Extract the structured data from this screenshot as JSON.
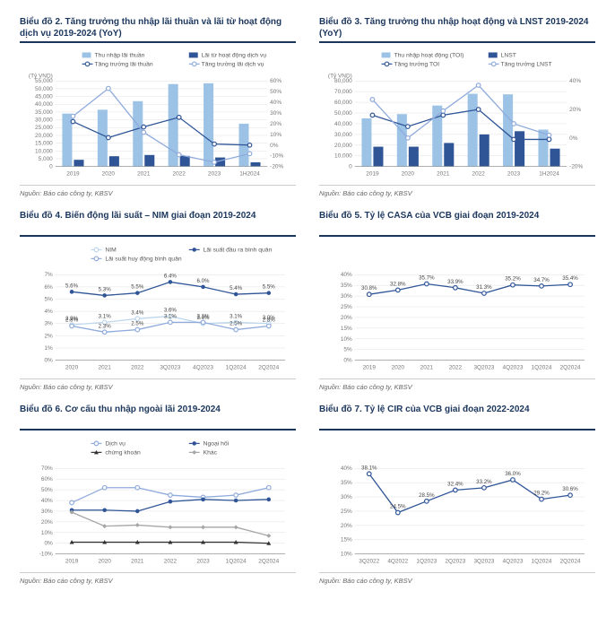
{
  "source_text": "Nguồn: Báo cáo công ty, KBSV",
  "colors": {
    "navy": "#1b365d",
    "lightblue_bar": "#9cc3e6",
    "darkblue_bar": "#2f5597",
    "line_primary": "#2f5597",
    "line_secondary": "#8faadc",
    "grid": "#e0e0e0",
    "axis_text": "#777777",
    "label_dark": "#333333"
  },
  "chart2": {
    "title": "Biểu đồ 2. Tăng trưởng thu nhập lãi thuần và lãi từ hoạt động dịch vụ 2019-2024 (YoY)",
    "categories": [
      "2019",
      "2020",
      "2021",
      "2022",
      "2023",
      "1H2024"
    ],
    "ylabel": "(Tỷ VND)",
    "yleft_max": 55000,
    "yleft_min": 0,
    "yleft_step": 5000,
    "yright_max": 60,
    "yright_min": -20,
    "yright_step": 10,
    "yright_suffix": "%",
    "series": {
      "bar1": {
        "label": "Thu nhập lãi thuần",
        "color": "#9cc3e6",
        "values": [
          34000,
          36500,
          42000,
          53000,
          53500,
          27500
        ]
      },
      "bar2": {
        "label": "Lãi từ hoạt động dịch vụ",
        "color": "#2f5597",
        "values": [
          4300,
          6600,
          7400,
          6800,
          5800,
          2700
        ]
      },
      "line1": {
        "label": "Tăng trưởng lãi thuần",
        "color": "#2f5597",
        "marker": "circle-open",
        "values": [
          22,
          7,
          17,
          26,
          1,
          0
        ]
      },
      "line2": {
        "label": "Tăng trưởng lãi dịch vụ",
        "color": "#8faadc",
        "marker": "circle-open",
        "values": [
          27,
          53,
          12,
          -9,
          -16,
          -8
        ]
      }
    }
  },
  "chart3": {
    "title": "Biểu đồ 3. Tăng trưởng thu nhập hoạt động và LNST 2019-2024 (YoY)",
    "categories": [
      "2019",
      "2020",
      "2021",
      "2022",
      "2023",
      "1H2024"
    ],
    "ylabel": "(Tỷ VND)",
    "yleft_max": 80000,
    "yleft_min": 0,
    "yleft_step": 10000,
    "yright_max": 40,
    "yright_min": -20,
    "yright_step": 20,
    "yright_suffix": "%",
    "series": {
      "bar1": {
        "label": "Thu nhập hoạt động (TOI)",
        "color": "#9cc3e6",
        "values": [
          45000,
          49000,
          57000,
          68000,
          67500,
          34500
        ]
      },
      "bar2": {
        "label": "LNST",
        "color": "#2f5597",
        "values": [
          18500,
          18500,
          22000,
          30000,
          33000,
          16700
        ]
      },
      "line1": {
        "label": "Tăng trưởng TOI",
        "color": "#2f5597",
        "marker": "circle-open",
        "values": [
          16,
          8,
          16,
          20,
          -1,
          -1
        ]
      },
      "line2": {
        "label": "Tăng trưởng LNST",
        "color": "#8faadc",
        "marker": "circle-open",
        "values": [
          27,
          0,
          19,
          37,
          10,
          2
        ]
      }
    }
  },
  "chart4": {
    "title": "Biểu đồ 4. Biến động lãi suất – NIM giai đoạn 2019-2024",
    "categories": [
      "2020",
      "2021",
      "2022",
      "3Q2023",
      "4Q2023",
      "1Q2024",
      "2Q2024"
    ],
    "yleft_max": 7,
    "yleft_min": 0,
    "yleft_step": 1,
    "yleft_suffix": "%",
    "series": {
      "nim": {
        "label": "NIM",
        "color": "#bdd7ee",
        "marker": "circle-open",
        "values": [
          2.9,
          3.1,
          3.4,
          3.6,
          3.0,
          3.1,
          3.0
        ],
        "labels": [
          "2.9%",
          "3.1%",
          "3.4%",
          "3.6%",
          "3.0%",
          "3.1%",
          "3.0%"
        ]
      },
      "out": {
        "label": "Lãi suất đầu ra bình quân",
        "color": "#2f5597",
        "marker": "circle-filled",
        "values": [
          5.6,
          5.3,
          5.5,
          6.4,
          6.0,
          5.4,
          5.5
        ],
        "labels": [
          "5.6%",
          "5.3%",
          "5.5%",
          "6.4%",
          "6.0%",
          "5.4%",
          "5.5%"
        ]
      },
      "in": {
        "label": "Lãi suất huy động bình quân",
        "color": "#8faadc",
        "marker": "circle-open",
        "values": [
          2.8,
          2.3,
          2.5,
          3.1,
          3.1,
          2.5,
          2.8
        ],
        "labels": [
          "2.8%",
          "2.3%",
          "2.5%",
          "3.1%",
          "3.1%",
          "2.5%",
          "2.8%"
        ]
      }
    }
  },
  "chart5": {
    "title": "Biểu đồ 5. Tỷ lệ CASA của VCB giai đoạn 2019-2024",
    "categories": [
      "2019",
      "2020",
      "2021",
      "2022",
      "3Q2023",
      "4Q2023",
      "1Q2024",
      "2Q2024"
    ],
    "yleft_max": 40,
    "yleft_min": 0,
    "yleft_step": 5,
    "yleft_suffix": "%",
    "series": {
      "casa": {
        "label": "",
        "color": "#2f5597",
        "marker": "circle-open",
        "values": [
          30.8,
          32.8,
          35.7,
          33.9,
          31.3,
          35.2,
          34.7,
          35.4
        ],
        "labels": [
          "30.8%",
          "32.8%",
          "35.7%",
          "33.9%",
          "31.3%",
          "35.2%",
          "34.7%",
          "35.4%"
        ]
      }
    }
  },
  "chart6": {
    "title": "Biểu đồ 6. Cơ cấu thu nhập ngoài lãi 2019-2024",
    "categories": [
      "2019",
      "2020",
      "2021",
      "2022",
      "2023",
      "1Q2024",
      "2Q2024"
    ],
    "yleft_max": 70,
    "yleft_min": -10,
    "yleft_step": 10,
    "yleft_suffix": "%",
    "series": {
      "dichvu": {
        "label": "Dịch vụ",
        "color": "#8faadc",
        "marker": "circle-open",
        "values": [
          38,
          52,
          52,
          45,
          43,
          45,
          52
        ]
      },
      "ngoaihoi": {
        "label": "Ngoại hối",
        "color": "#2f5597",
        "marker": "circle-filled",
        "values": [
          31,
          31,
          30,
          39,
          41,
          40,
          41
        ]
      },
      "ck": {
        "label": "chứng khoán",
        "color": "#333333",
        "marker": "triangle",
        "values": [
          1,
          1,
          1,
          1,
          1,
          1,
          0
        ]
      },
      "khac": {
        "label": "Khác",
        "color": "#a6a6a6",
        "marker": "diamond",
        "values": [
          29,
          16,
          17,
          15,
          15,
          15,
          7
        ]
      }
    }
  },
  "chart7": {
    "title": "Biểu đồ 7. Tỷ lệ CIR của VCB giai đoạn 2022-2024",
    "categories": [
      "3Q2022",
      "4Q2022",
      "1Q2023",
      "2Q2023",
      "3Q2023",
      "4Q2023",
      "1Q2024",
      "2Q2024"
    ],
    "yleft_max": 40,
    "yleft_min": 10,
    "yleft_step": 5,
    "yleft_suffix": "%",
    "series": {
      "cir": {
        "label": "",
        "color": "#2f5597",
        "marker": "circle-open",
        "values": [
          38.1,
          24.5,
          28.5,
          32.4,
          33.2,
          36.0,
          29.2,
          30.6
        ],
        "labels": [
          "38.1%",
          "24.5%",
          "28.5%",
          "32.4%",
          "33.2%",
          "36.0%",
          "29.2%",
          "30.6%"
        ]
      }
    }
  }
}
